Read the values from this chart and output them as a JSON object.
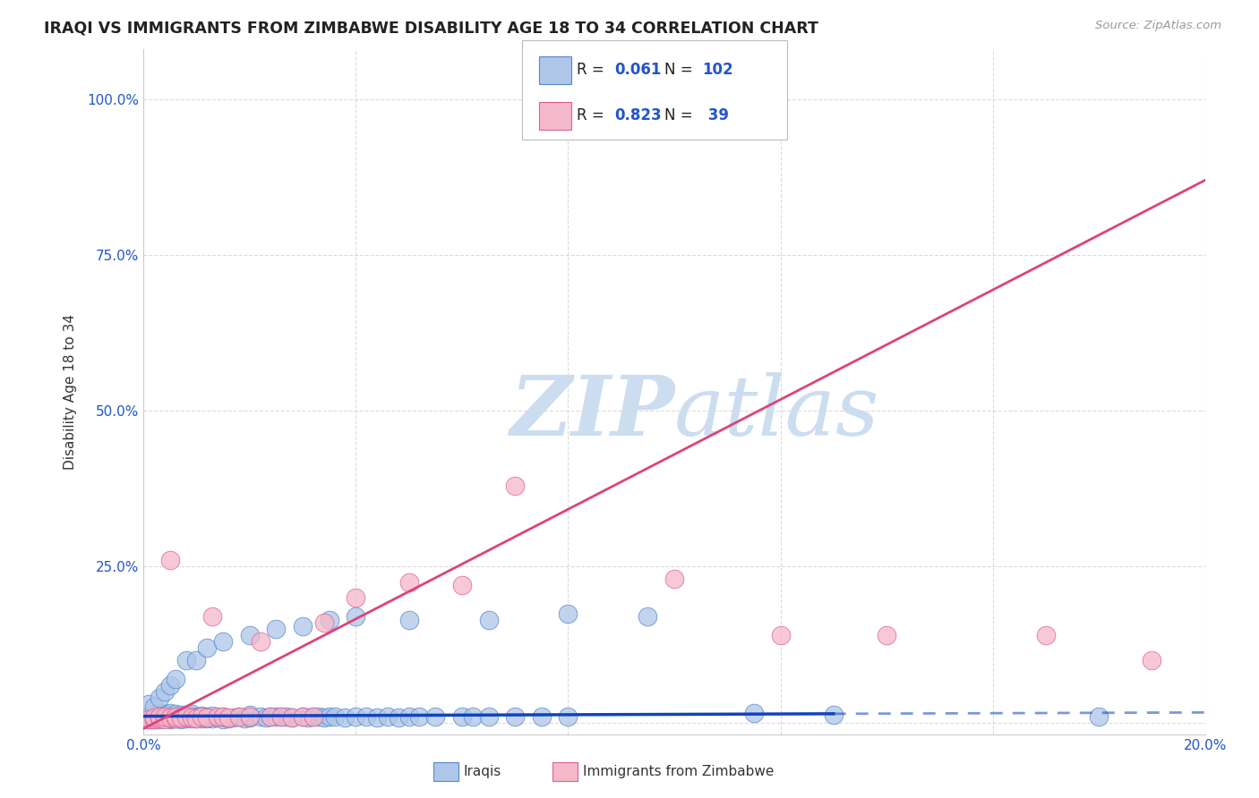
{
  "title": "IRAQI VS IMMIGRANTS FROM ZIMBABWE DISABILITY AGE 18 TO 34 CORRELATION CHART",
  "source": "Source: ZipAtlas.com",
  "ylabel": "Disability Age 18 to 34",
  "xlim": [
    0.0,
    0.2
  ],
  "ylim": [
    -0.02,
    1.08
  ],
  "y_ticks": [
    0.0,
    0.25,
    0.5,
    0.75,
    1.0
  ],
  "y_tick_labels": [
    "",
    "25.0%",
    "50.0%",
    "75.0%",
    "100.0%"
  ],
  "x_ticks": [
    0.0,
    0.04,
    0.08,
    0.12,
    0.16,
    0.2
  ],
  "x_tick_labels": [
    "0.0%",
    "",
    "",
    "",
    "",
    "20.0%"
  ],
  "iraqis_R": 0.061,
  "iraqis_N": 102,
  "zimbabwe_R": 0.823,
  "zimbabwe_N": 39,
  "iraqis_color": "#aec6e8",
  "iraqis_edge_color": "#5588cc",
  "zimbabwe_color": "#f5b8cb",
  "zimbabwe_edge_color": "#e06090",
  "trend_iraqis_color": "#1144bb",
  "trend_zimbabwe_color": "#dd4477",
  "grid_color": "#cccccc",
  "background_color": "#ffffff",
  "watermark_color": "#ccddf0",
  "iraqis_x": [
    0.001,
    0.001,
    0.001,
    0.002,
    0.002,
    0.002,
    0.002,
    0.003,
    0.003,
    0.003,
    0.003,
    0.003,
    0.004,
    0.004,
    0.004,
    0.004,
    0.005,
    0.005,
    0.005,
    0.005,
    0.005,
    0.006,
    0.006,
    0.006,
    0.006,
    0.007,
    0.007,
    0.007,
    0.008,
    0.008,
    0.008,
    0.009,
    0.009,
    0.009,
    0.01,
    0.01,
    0.011,
    0.011,
    0.012,
    0.012,
    0.013,
    0.013,
    0.014,
    0.015,
    0.015,
    0.016,
    0.017,
    0.018,
    0.019,
    0.02,
    0.02,
    0.022,
    0.023,
    0.024,
    0.025,
    0.026,
    0.027,
    0.028,
    0.03,
    0.031,
    0.032,
    0.033,
    0.034,
    0.035,
    0.036,
    0.038,
    0.04,
    0.042,
    0.044,
    0.046,
    0.048,
    0.05,
    0.052,
    0.055,
    0.06,
    0.062,
    0.065,
    0.07,
    0.075,
    0.08,
    0.001,
    0.002,
    0.003,
    0.004,
    0.005,
    0.006,
    0.008,
    0.01,
    0.012,
    0.015,
    0.02,
    0.025,
    0.03,
    0.035,
    0.04,
    0.05,
    0.065,
    0.08,
    0.095,
    0.115,
    0.13,
    0.18
  ],
  "iraqis_y": [
    0.005,
    0.008,
    0.01,
    0.005,
    0.007,
    0.01,
    0.012,
    0.005,
    0.008,
    0.01,
    0.013,
    0.015,
    0.006,
    0.008,
    0.01,
    0.013,
    0.005,
    0.007,
    0.01,
    0.012,
    0.015,
    0.006,
    0.008,
    0.01,
    0.013,
    0.005,
    0.008,
    0.012,
    0.006,
    0.009,
    0.012,
    0.006,
    0.009,
    0.013,
    0.006,
    0.01,
    0.007,
    0.011,
    0.006,
    0.01,
    0.007,
    0.011,
    0.008,
    0.005,
    0.01,
    0.007,
    0.008,
    0.009,
    0.007,
    0.008,
    0.012,
    0.009,
    0.008,
    0.01,
    0.009,
    0.01,
    0.009,
    0.008,
    0.009,
    0.008,
    0.01,
    0.009,
    0.008,
    0.01,
    0.009,
    0.008,
    0.01,
    0.009,
    0.008,
    0.009,
    0.008,
    0.01,
    0.009,
    0.01,
    0.009,
    0.01,
    0.01,
    0.01,
    0.01,
    0.01,
    0.03,
    0.025,
    0.04,
    0.05,
    0.06,
    0.07,
    0.1,
    0.1,
    0.12,
    0.13,
    0.14,
    0.15,
    0.155,
    0.165,
    0.17,
    0.165,
    0.165,
    0.175,
    0.17,
    0.015,
    0.012,
    0.01
  ],
  "zimbabwe_x": [
    0.001,
    0.002,
    0.002,
    0.003,
    0.003,
    0.004,
    0.004,
    0.005,
    0.005,
    0.006,
    0.006,
    0.007,
    0.008,
    0.009,
    0.01,
    0.011,
    0.012,
    0.013,
    0.014,
    0.015,
    0.016,
    0.018,
    0.02,
    0.022,
    0.024,
    0.026,
    0.028,
    0.03,
    0.032,
    0.034,
    0.04,
    0.05,
    0.06,
    0.07,
    0.1,
    0.12,
    0.14,
    0.17,
    0.19
  ],
  "zimbabwe_y": [
    0.005,
    0.005,
    0.008,
    0.007,
    0.01,
    0.005,
    0.01,
    0.008,
    0.26,
    0.007,
    0.01,
    0.008,
    0.01,
    0.008,
    0.007,
    0.01,
    0.008,
    0.17,
    0.01,
    0.009,
    0.008,
    0.01,
    0.009,
    0.13,
    0.01,
    0.009,
    0.008,
    0.01,
    0.009,
    0.16,
    0.2,
    0.225,
    0.22,
    0.38,
    0.23,
    0.14,
    0.14,
    0.14,
    0.1
  ],
  "trend_iraq_x0": 0.0,
  "trend_iraq_y0": 0.01,
  "trend_iraq_x1": 0.2,
  "trend_iraq_y1": 0.016,
  "trend_iraq_solid_end": 0.13,
  "trend_zim_x0": 0.0,
  "trend_zim_y0": -0.01,
  "trend_zim_x1": 0.2,
  "trend_zim_y1": 0.87
}
